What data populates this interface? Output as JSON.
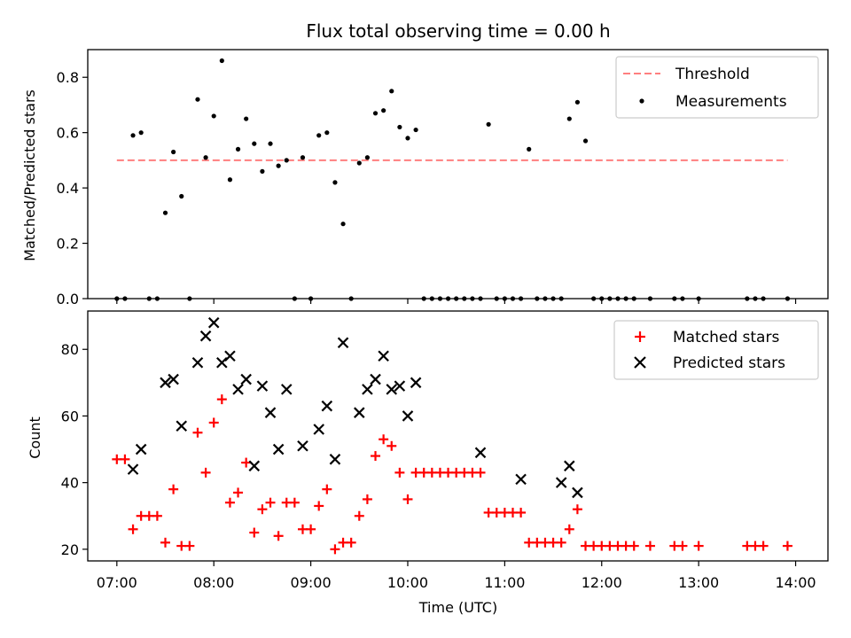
{
  "chart_data": [
    {
      "type": "scatter",
      "title": "Flux total observing time = 0.00 h",
      "xlabel": "",
      "ylabel": "Matched/Predicted stars",
      "xlim": [
        "06:42",
        "14:20"
      ],
      "ylim": [
        0,
        0.9
      ],
      "yticks": [
        0.0,
        0.2,
        0.4,
        0.6,
        0.8
      ],
      "ytick_labels": [
        "0.0",
        "0.2",
        "0.4",
        "0.6",
        "0.8"
      ],
      "grid": false,
      "legend_position": "top-right",
      "threshold": {
        "name": "Threshold",
        "value": 0.5,
        "x_start": "07:00",
        "x_end": "13:55",
        "color": "#ff7f7f",
        "style": "dashed"
      },
      "series": [
        {
          "name": "Measurements",
          "color": "#000000",
          "marker": "dot",
          "x": [
            "07:00",
            "07:05",
            "07:10",
            "07:15",
            "07:20",
            "07:25",
            "07:30",
            "07:35",
            "07:40",
            "07:45",
            "07:50",
            "07:55",
            "08:00",
            "08:05",
            "08:10",
            "08:15",
            "08:20",
            "08:25",
            "08:30",
            "08:35",
            "08:40",
            "08:45",
            "08:50",
            "08:55",
            "09:00",
            "09:05",
            "09:10",
            "09:15",
            "09:20",
            "09:25",
            "09:30",
            "09:35",
            "09:40",
            "09:45",
            "09:50",
            "09:55",
            "10:00",
            "10:05",
            "10:10",
            "10:15",
            "10:20",
            "10:25",
            "10:30",
            "10:35",
            "10:40",
            "10:45",
            "10:50",
            "10:55",
            "11:00",
            "11:05",
            "11:10",
            "11:15",
            "11:20",
            "11:25",
            "11:30",
            "11:35",
            "11:40",
            "11:45",
            "11:50",
            "11:55",
            "12:00",
            "12:05",
            "12:10",
            "12:15",
            "12:20",
            "12:30",
            "12:45",
            "12:50",
            "13:00",
            "13:30",
            "13:35",
            "13:40",
            "13:55"
          ],
          "y": [
            0,
            0,
            0.59,
            0.6,
            0,
            0,
            0.31,
            0.53,
            0.37,
            0,
            0.72,
            0.51,
            0.66,
            0.86,
            0.43,
            0.54,
            0.65,
            0.56,
            0.46,
            0.56,
            0.48,
            0.5,
            0,
            0.51,
            0,
            0.59,
            0.6,
            0.42,
            0.27,
            0,
            0.49,
            0.51,
            0.67,
            0.68,
            0.75,
            0.62,
            0.58,
            0.61,
            0,
            0,
            0,
            0,
            0,
            0,
            0,
            0,
            0.63,
            0,
            0,
            0,
            0,
            0.54,
            0,
            0,
            0,
            0,
            0.65,
            0.71,
            0.57,
            0,
            0,
            0,
            0,
            0,
            0,
            0,
            0,
            0,
            0,
            0,
            0,
            0,
            0
          ]
        }
      ]
    },
    {
      "type": "scatter",
      "title": "",
      "xlabel": "Time (UTC)",
      "ylabel": "Count",
      "xlim": [
        "06:42",
        "14:20"
      ],
      "ylim": [
        16.5,
        91.5
      ],
      "yticks": [
        20,
        40,
        60,
        80
      ],
      "ytick_labels": [
        "20",
        "40",
        "60",
        "80"
      ],
      "xticks": [
        "07:00",
        "08:00",
        "09:00",
        "10:00",
        "11:00",
        "12:00",
        "13:00",
        "14:00"
      ],
      "xtick_labels": [
        "07:00",
        "08:00",
        "09:00",
        "10:00",
        "11:00",
        "12:00",
        "13:00",
        "14:00"
      ],
      "grid": false,
      "legend_position": "top-right",
      "series": [
        {
          "name": "Matched stars",
          "color": "#ff0000",
          "marker": "plus",
          "x": [
            "07:00",
            "07:05",
            "07:10",
            "07:15",
            "07:20",
            "07:25",
            "07:30",
            "07:35",
            "07:40",
            "07:45",
            "07:50",
            "07:55",
            "08:00",
            "08:05",
            "08:10",
            "08:15",
            "08:20",
            "08:25",
            "08:30",
            "08:35",
            "08:40",
            "08:45",
            "08:50",
            "08:55",
            "09:00",
            "09:05",
            "09:10",
            "09:15",
            "09:20",
            "09:25",
            "09:30",
            "09:35",
            "09:40",
            "09:45",
            "09:50",
            "09:55",
            "10:00",
            "10:05",
            "10:10",
            "10:15",
            "10:20",
            "10:25",
            "10:30",
            "10:35",
            "10:40",
            "10:45",
            "10:50",
            "10:55",
            "11:00",
            "11:05",
            "11:10",
            "11:15",
            "11:20",
            "11:25",
            "11:30",
            "11:35",
            "11:40",
            "11:45",
            "11:50",
            "11:55",
            "12:00",
            "12:05",
            "12:10",
            "12:15",
            "12:20",
            "12:30",
            "12:45",
            "12:50",
            "13:00",
            "13:30",
            "13:35",
            "13:40",
            "13:55"
          ],
          "y": [
            47,
            47,
            26,
            30,
            30,
            30,
            22,
            38,
            21,
            21,
            55,
            43,
            58,
            65,
            34,
            37,
            46,
            25,
            32,
            34,
            24,
            34,
            34,
            26,
            26,
            33,
            38,
            20,
            22,
            22,
            30,
            35,
            48,
            53,
            51,
            43,
            35,
            43,
            43,
            43,
            43,
            43,
            43,
            43,
            43,
            43,
            31,
            31,
            31,
            31,
            31,
            22,
            22,
            22,
            22,
            22,
            26,
            32,
            21,
            21,
            21,
            21,
            21,
            21,
            21,
            21,
            21,
            21,
            21,
            21,
            21,
            21,
            21
          ]
        },
        {
          "name": "Predicted stars",
          "color": "#000000",
          "marker": "x",
          "x": [
            "07:10",
            "07:15",
            "07:30",
            "07:35",
            "07:40",
            "07:50",
            "07:55",
            "08:00",
            "08:05",
            "08:10",
            "08:15",
            "08:20",
            "08:25",
            "08:30",
            "08:35",
            "08:40",
            "08:45",
            "08:55",
            "09:05",
            "09:10",
            "09:15",
            "09:20",
            "09:30",
            "09:35",
            "09:40",
            "09:45",
            "09:50",
            "09:55",
            "10:00",
            "10:05",
            "10:45",
            "11:10",
            "11:35",
            "11:40",
            "11:45"
          ],
          "y": [
            44,
            50,
            70,
            71,
            57,
            76,
            84,
            88,
            76,
            78,
            68,
            71,
            45,
            69,
            61,
            50,
            68,
            51,
            56,
            63,
            47,
            82,
            61,
            68,
            71,
            78,
            68,
            69,
            60,
            70,
            49,
            41,
            40,
            45,
            37
          ]
        }
      ]
    }
  ]
}
